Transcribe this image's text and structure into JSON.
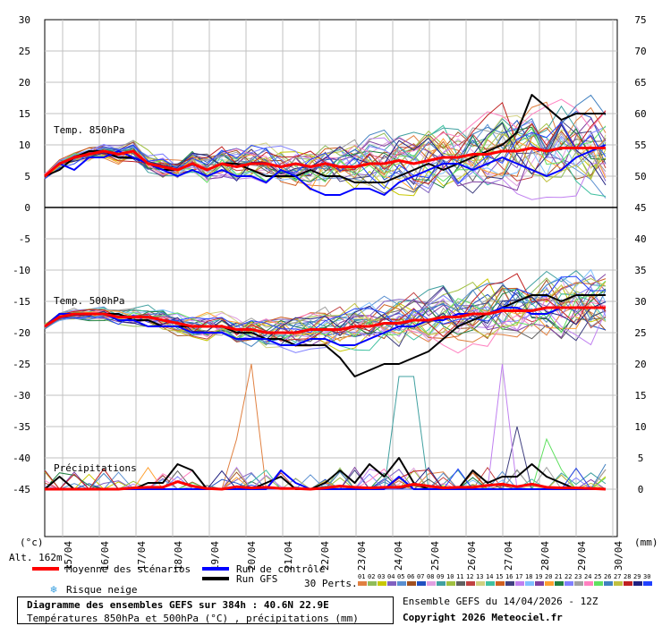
{
  "chart_data": {
    "type": "line",
    "title": "Diagramme des ensembles GEFS sur 384h : 40.6N 22.9E",
    "subtitle": "Températures 850hPa et 500hPa (°C) , précipitations (mm)",
    "run_info": "Ensemble GEFS du 14/04/2026 - 12Z",
    "copyright": "Copyright 2026 Meteociel.fr",
    "altitude": "Alt. 162m",
    "left_unit": "(°c)",
    "right_unit": "(mm)",
    "left_axis": {
      "ticks": [
        30,
        25,
        20,
        15,
        10,
        5,
        0,
        -5,
        -10,
        -15,
        -20,
        -25,
        -30,
        -35,
        -40,
        -45
      ]
    },
    "right_axis": {
      "ticks": [
        75,
        70,
        65,
        60,
        55,
        50,
        45,
        40,
        35,
        30,
        25,
        20,
        15,
        10,
        5,
        0
      ]
    },
    "x_ticks": [
      "15/04",
      "16/04",
      "17/04",
      "18/04",
      "19/04",
      "20/04",
      "21/04",
      "22/04",
      "23/04",
      "24/04",
      "25/04",
      "26/04",
      "27/04",
      "28/04",
      "29/04",
      "30/04"
    ],
    "panel_labels": {
      "t850": "Temp. 850hPa",
      "t500": "Temp. 500hPa",
      "precip": "Précipitations"
    },
    "grid": true,
    "legend": {
      "mean": "Moyenne des scénarios",
      "control": "Run de contrôle",
      "gfs": "Run GFS",
      "snow": "Risque neige",
      "perts_label": "30 Perts.",
      "member_labels": [
        "01",
        "02",
        "03",
        "04",
        "05",
        "06",
        "07",
        "08",
        "09",
        "10",
        "11",
        "12",
        "13",
        "14",
        "15",
        "16",
        "17",
        "18",
        "19",
        "20",
        "21",
        "22",
        "23",
        "24",
        "25",
        "26",
        "27",
        "28",
        "29",
        "30"
      ],
      "member_colors": [
        "#e08040",
        "#8fbc5a",
        "#c8c800",
        "#8060c0",
        "#5a8fd0",
        "#a05020",
        "#2050c0",
        "#e0a0e0",
        "#40a0a0",
        "#a0c040",
        "#606060",
        "#c04040",
        "#d0d080",
        "#40c0a0",
        "#d06020",
        "#404080",
        "#c080f0",
        "#80c0ff",
        "#8040a0",
        "#ffa030",
        "#208040",
        "#8080ff",
        "#a0a0a0",
        "#ff80c0",
        "#60e060",
        "#4080c0",
        "#c0c040",
        "#c02020",
        "#202080",
        "#2040ff"
      ],
      "mean_color": "#ff0000",
      "control_color": "#0000ff",
      "gfs_color": "#000000"
    },
    "series": [
      {
        "name": "Moyenne des scénarios",
        "t850": [
          5,
          7,
          8,
          8.5,
          9,
          8.5,
          9,
          7,
          6.5,
          6,
          7,
          6,
          7,
          6.5,
          7,
          7,
          6.5,
          7,
          6.5,
          7,
          6.5,
          6.5,
          7,
          7,
          7.5,
          7,
          7.5,
          8,
          8,
          8.5,
          8.5,
          9,
          9,
          9.5,
          9,
          9.5,
          9.5,
          9.5,
          9.5
        ],
        "t500": [
          -19,
          -17.5,
          -17,
          -17,
          -17,
          -17.5,
          -17.5,
          -17.5,
          -18,
          -18.5,
          -19,
          -19,
          -19,
          -19.5,
          -19.5,
          -20,
          -20,
          -20,
          -19.5,
          -19.5,
          -19.5,
          -19,
          -19,
          -18.5,
          -18.5,
          -18,
          -18,
          -17.5,
          -17.5,
          -17,
          -17,
          -16.5,
          -16.5,
          -16.5,
          -16,
          -16,
          -16,
          -16,
          -16
        ],
        "precip": [
          0,
          0,
          0,
          0,
          0,
          0,
          0.2,
          0.3,
          0.3,
          1.2,
          0.5,
          0.1,
          0,
          0.4,
          0.2,
          0.3,
          0.1,
          0.1,
          0,
          0.2,
          0.5,
          0.3,
          0.2,
          0.3,
          0.3,
          0.8,
          0.5,
          0.2,
          0.3,
          0.3,
          0.6,
          0.8,
          0.4,
          0.8,
          0.3,
          0.2,
          0.2,
          0.1,
          0
        ]
      },
      {
        "name": "Run de contrôle",
        "t850": [
          5,
          7,
          6,
          8,
          8,
          9,
          8,
          7,
          6,
          5,
          6,
          5,
          6,
          5,
          5,
          4,
          6,
          5,
          3,
          2,
          2,
          3,
          3,
          2,
          4,
          5,
          6,
          7,
          7,
          6,
          7,
          8,
          7,
          6,
          5,
          6,
          8,
          9,
          10
        ],
        "t500": [
          -19,
          -17,
          -17,
          -17,
          -17,
          -18,
          -18,
          -19,
          -19,
          -19,
          -20,
          -20,
          -20,
          -21,
          -21,
          -21,
          -22,
          -22,
          -21,
          -21,
          -22,
          -22,
          -21,
          -20,
          -19,
          -19,
          -18,
          -18,
          -17,
          -17,
          -17,
          -16,
          -16,
          -17,
          -17,
          -16,
          -16,
          -16,
          -16
        ],
        "precip": [
          0,
          0,
          0,
          0,
          0,
          0,
          0,
          0,
          0,
          0,
          0,
          0,
          0,
          0,
          0,
          0,
          3,
          1,
          0,
          0,
          0,
          0,
          0,
          0,
          2,
          0,
          0,
          0,
          0,
          0,
          0,
          0,
          0,
          0,
          0,
          0,
          0,
          0,
          0
        ]
      },
      {
        "name": "Run GFS",
        "t850": [
          5,
          6,
          8,
          9,
          9,
          8,
          8,
          7,
          6,
          6,
          7,
          6,
          7,
          7,
          6,
          5,
          5,
          5,
          6,
          5,
          5,
          4,
          4,
          4,
          5,
          6,
          7,
          6,
          7,
          8,
          9,
          10,
          12,
          18,
          16,
          14,
          15,
          15,
          15
        ],
        "t500": [
          -19,
          -17,
          -17,
          -17,
          -17,
          -17,
          -18,
          -18,
          -19,
          -19,
          -19,
          -19,
          -19,
          -20,
          -20,
          -21,
          -21,
          -22,
          -22,
          -22,
          -24,
          -27,
          -26,
          -25,
          -25,
          -24,
          -23,
          -21,
          -19,
          -18,
          -17,
          -16,
          -15,
          -14,
          -14,
          -15,
          -14,
          -14,
          -14
        ],
        "precip": [
          0,
          2,
          0,
          0,
          0,
          0,
          0,
          1,
          1,
          4,
          3,
          0,
          0,
          0,
          0,
          1,
          2,
          0,
          0,
          1,
          3,
          1,
          4,
          2,
          5,
          1,
          0,
          0,
          0,
          3,
          1,
          2,
          2,
          4,
          2,
          1,
          0,
          0,
          0
        ]
      }
    ]
  }
}
